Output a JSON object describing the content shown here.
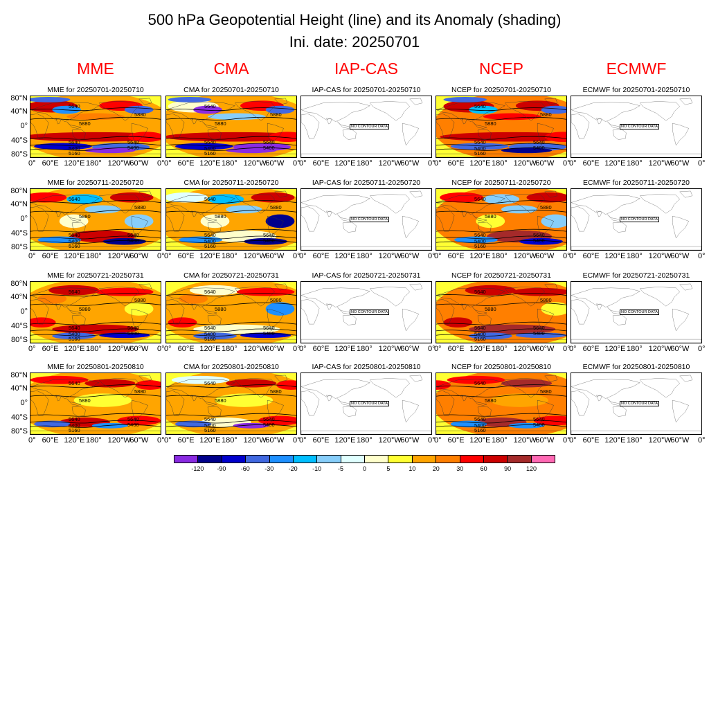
{
  "title": "500 hPa Geopotential Height (line) and its Anomaly (shading)",
  "subtitle": "Ini. date: 20250701",
  "models": [
    "MME",
    "CMA",
    "IAP-CAS",
    "NCEP",
    "ECMWF"
  ],
  "periods": [
    "20250701-20250710",
    "20250711-20250720",
    "20250721-20250731",
    "20250801-20250810"
  ],
  "panel_titles": [
    [
      "MME for 20250701-20250710",
      "CMA for 20250701-20250710",
      "IAP-CAS for 20250701-20250710",
      "NCEP for 20250701-20250710",
      "ECMWF for 20250701-20250710"
    ],
    [
      "MME for 20250711-20250720",
      "CMA for 20250711-20250720",
      "IAP-CAS for 20250711-20250720",
      "NCEP for 20250711-20250720",
      "ECMWF for 20250711-20250720"
    ],
    [
      "MME for 20250721-20250731",
      "CMA for 20250721-20250731",
      "IAP-CAS for 20250721-20250731",
      "NCEP for 20250721-20250731",
      "ECMWF for 20250721-20250731"
    ],
    [
      "MME for 20250801-20250810",
      "CMA for 20250801-20250810",
      "IAP-CAS for 20250801-20250810",
      "NCEP for 20250801-20250810",
      "ECMWF for 20250801-20250810"
    ]
  ],
  "has_data": [
    true,
    true,
    false,
    true,
    false
  ],
  "no_data_text": "NO CONTOUR DATA",
  "lat_labels": [
    "80°N",
    "40°N",
    "0°",
    "40°S",
    "80°S"
  ],
  "lon_labels": [
    "0°",
    "60°E",
    "120°E",
    "180°",
    "120°W",
    "60°W",
    "0°"
  ],
  "contour_labels": [
    "5640",
    "5880",
    "5400",
    "5160"
  ],
  "colorbar": {
    "ticks": [
      "-120",
      "-90",
      "-60",
      "-30",
      "-20",
      "-10",
      "-5",
      "0",
      "5",
      "10",
      "20",
      "30",
      "60",
      "90",
      "120"
    ],
    "colors": [
      "#8a2be2",
      "#00008b",
      "#0000cd",
      "#4169e1",
      "#1e90ff",
      "#00bfff",
      "#87cefa",
      "#e0ffff",
      "#ffffcc",
      "#ffff33",
      "#ffa500",
      "#ff7f00",
      "#ff0000",
      "#cd0000",
      "#a52a2a",
      "#ff69b4"
    ]
  }
}
